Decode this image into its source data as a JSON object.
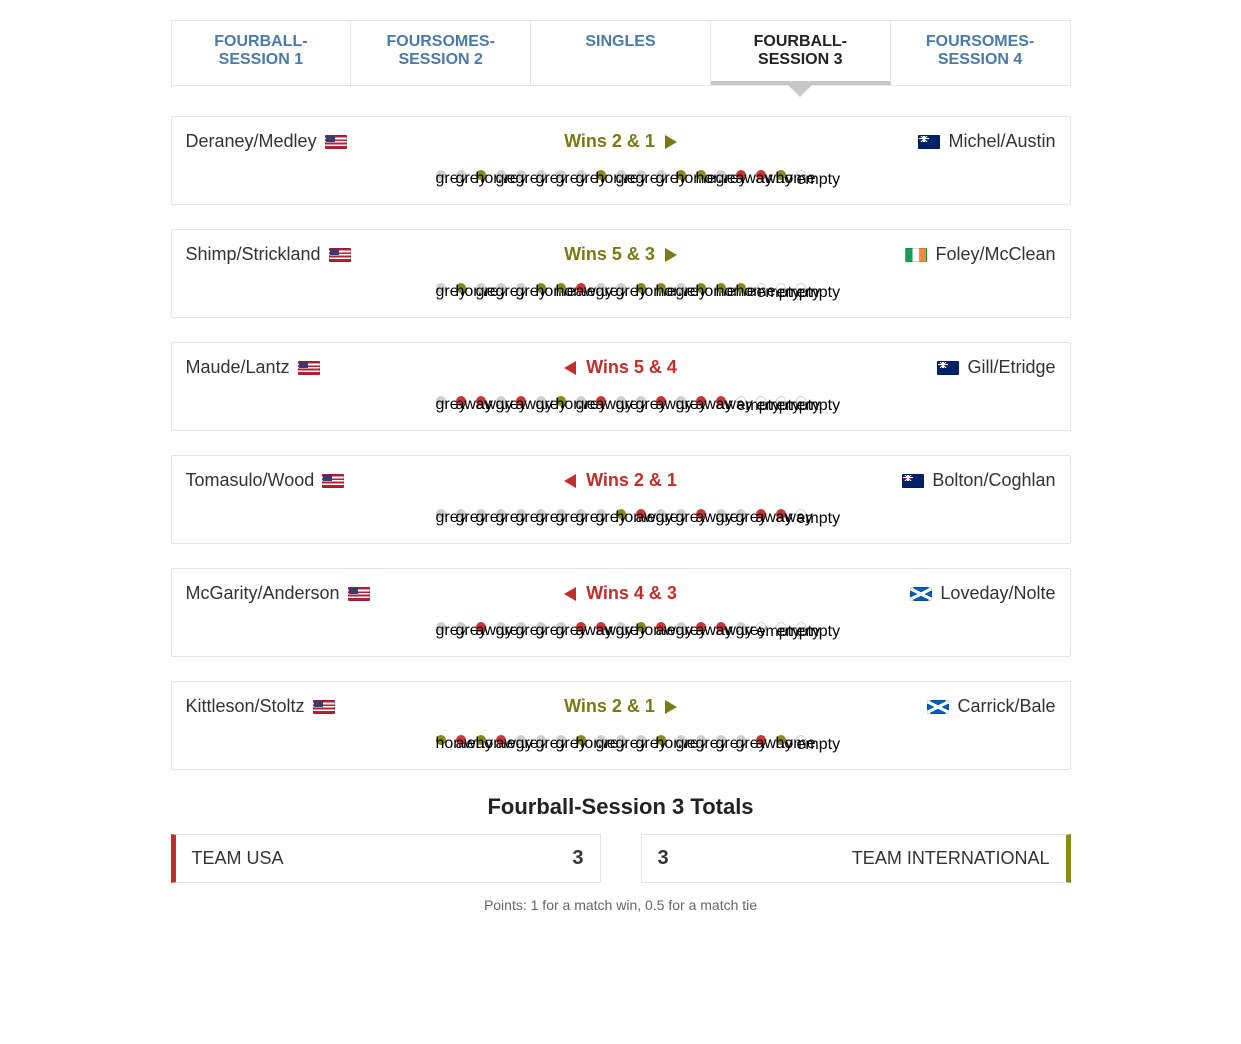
{
  "colors": {
    "tab_inactive_text": "#4a7aa8",
    "tab_active_text": "#222222",
    "tab_active_underline": "#c8c8c8",
    "home_color": "#7a7a12",
    "away_color": "#c12e2e",
    "hole_grey": "#cfcfcf",
    "hole_home": "#8a8a1a",
    "hole_away": "#c43a3a",
    "border": "#e3e3e3",
    "total_left_accent": "#c12e2e",
    "total_right_accent": "#8a8a1a"
  },
  "tabs": [
    {
      "label": "FOURBALL-SESSION 1",
      "active": false
    },
    {
      "label": "FOURSOMES-SESSION 2",
      "active": false
    },
    {
      "label": "SINGLES",
      "active": false
    },
    {
      "label": "FOURBALL-SESSION 3",
      "active": true
    },
    {
      "label": "FOURSOMES-SESSION 4",
      "active": false
    }
  ],
  "flags": {
    "usa": "flag-usa",
    "aus": "flag-aus",
    "irl": "flag-irl",
    "nzl": "flag-nzl",
    "sco": "flag-sco"
  },
  "matches": [
    {
      "left_team": "Deraney/Medley",
      "left_flag": "usa",
      "right_team": "Michel/Austin",
      "right_flag": "aus",
      "result_text": "Wins 2 & 1",
      "winner": "home",
      "holes": [
        "grey",
        "grey",
        "home",
        "grey",
        "grey",
        "grey",
        "grey",
        "grey",
        "home",
        "grey",
        "grey",
        "grey",
        "home",
        "home",
        "grey",
        "away",
        "away",
        "home",
        "empty"
      ]
    },
    {
      "left_team": "Shimp/Strickland",
      "left_flag": "usa",
      "right_team": "Foley/McClean",
      "right_flag": "irl",
      "result_text": "Wins 5 & 3",
      "winner": "home",
      "holes": [
        "grey",
        "home",
        "grey",
        "grey",
        "grey",
        "home",
        "home",
        "away",
        "grey",
        "grey",
        "home",
        "home",
        "grey",
        "home",
        "home",
        "home",
        "empty",
        "empty",
        "empty"
      ]
    },
    {
      "left_team": "Maude/Lantz",
      "left_flag": "usa",
      "right_team": "Gill/Etridge",
      "right_flag": "nzl",
      "result_text": "Wins 5 & 4",
      "winner": "away",
      "holes": [
        "grey",
        "away",
        "away",
        "grey",
        "away",
        "grey",
        "home",
        "grey",
        "away",
        "grey",
        "grey",
        "away",
        "grey",
        "away",
        "away",
        "empty",
        "empty",
        "empty",
        "empty"
      ]
    },
    {
      "left_team": "Tomasulo/Wood",
      "left_flag": "usa",
      "right_team": "Bolton/Coghlan",
      "right_flag": "aus",
      "result_text": "Wins 2 & 1",
      "winner": "away",
      "holes": [
        "grey",
        "grey",
        "grey",
        "grey",
        "grey",
        "grey",
        "grey",
        "grey",
        "grey",
        "home",
        "away",
        "grey",
        "grey",
        "away",
        "grey",
        "grey",
        "away",
        "away",
        "empty"
      ]
    },
    {
      "left_team": "McGarity/Anderson",
      "left_flag": "usa",
      "right_team": "Loveday/Nolte",
      "right_flag": "sco",
      "result_text": "Wins 4 & 3",
      "winner": "away",
      "holes": [
        "grey",
        "grey",
        "away",
        "grey",
        "grey",
        "grey",
        "grey",
        "away",
        "away",
        "grey",
        "home",
        "away",
        "grey",
        "away",
        "away",
        "grey",
        "empty",
        "empty",
        "empty"
      ]
    },
    {
      "left_team": "Kittleson/Stoltz",
      "left_flag": "usa",
      "right_team": "Carrick/Bale",
      "right_flag": "sco",
      "result_text": "Wins 2 & 1",
      "winner": "home",
      "holes": [
        "home",
        "away",
        "home",
        "away",
        "grey",
        "grey",
        "grey",
        "home",
        "grey",
        "grey",
        "grey",
        "home",
        "grey",
        "grey",
        "grey",
        "grey",
        "away",
        "home",
        "empty"
      ]
    }
  ],
  "totals": {
    "title": "Fourball-Session 3 Totals",
    "left_label": "TEAM USA",
    "left_score": "3",
    "right_label": "TEAM INTERNATIONAL",
    "right_score": "3",
    "footnote": "Points: 1 for a match win, 0.5 for a match tie"
  }
}
